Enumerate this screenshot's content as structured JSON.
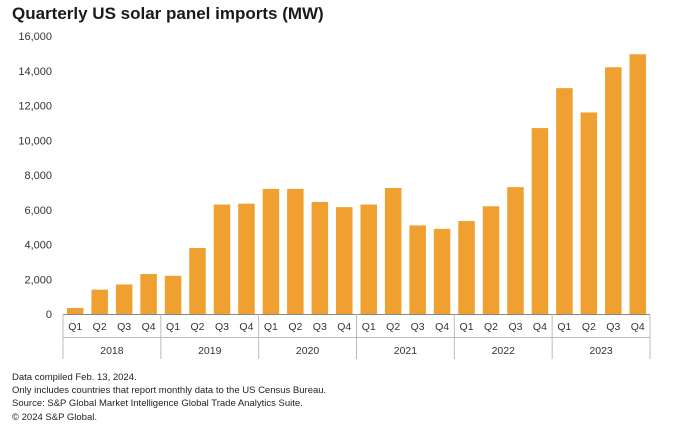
{
  "chart_data": {
    "type": "bar",
    "title": "Quarterly US solar panel imports (MW)",
    "xlabel": "",
    "ylabel": "",
    "ylim": [
      0,
      16000
    ],
    "yticks": [
      "0",
      "2,000",
      "4,000",
      "6,000",
      "8,000",
      "10,000",
      "12,000",
      "14,000",
      "16,000"
    ],
    "ytick_values": [
      0,
      2000,
      4000,
      6000,
      8000,
      10000,
      12000,
      14000,
      16000
    ],
    "grid": false,
    "bar_color": "#F0A030",
    "categories": [
      "Q1 2018",
      "Q2 2018",
      "Q3 2018",
      "Q4 2018",
      "Q1 2019",
      "Q2 2019",
      "Q3 2019",
      "Q4 2019",
      "Q1 2020",
      "Q2 2020",
      "Q3 2020",
      "Q4 2020",
      "Q1 2021",
      "Q2 2021",
      "Q3 2021",
      "Q4 2021",
      "Q1 2022",
      "Q2 2022",
      "Q3 2022",
      "Q4 2022",
      "Q1 2023",
      "Q2 2023",
      "Q3 2023",
      "Q4 2023"
    ],
    "quarter_labels": [
      "Q1",
      "Q2",
      "Q3",
      "Q4",
      "Q1",
      "Q2",
      "Q3",
      "Q4",
      "Q1",
      "Q2",
      "Q3",
      "Q4",
      "Q1",
      "Q2",
      "Q3",
      "Q4",
      "Q1",
      "Q2",
      "Q3",
      "Q4",
      "Q1",
      "Q2",
      "Q3",
      "Q4"
    ],
    "years": [
      "2018",
      "2019",
      "2020",
      "2021",
      "2022",
      "2023"
    ],
    "values": [
      350,
      1400,
      1700,
      2300,
      2200,
      3800,
      6300,
      6350,
      7200,
      7200,
      6450,
      6150,
      6300,
      7250,
      5100,
      4900,
      5350,
      6200,
      7300,
      10700,
      13000,
      11600,
      14200,
      14950
    ]
  },
  "footnotes": {
    "line1": "Data compiled Feb. 13, 2024.",
    "line2": "Only includes countries that report monthly data to the US Census Bureau.",
    "line3": "Source: S&P Global Market Intelligence Global Trade Analytics Suite.",
    "line4": "© 2024 S&P Global."
  }
}
